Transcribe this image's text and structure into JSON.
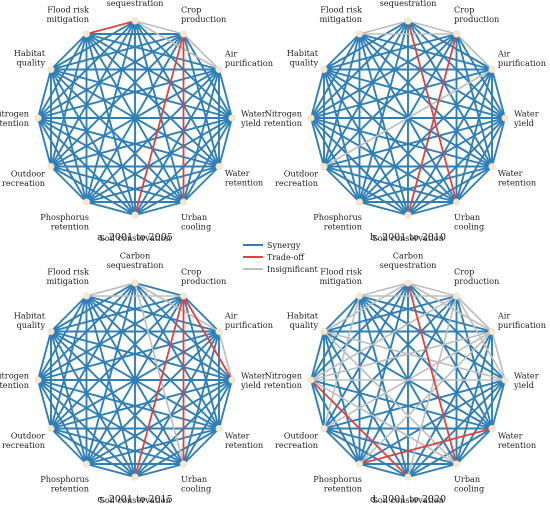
{
  "colors": {
    "synergy": "#2f7fb5",
    "tradeoff": "#e0413f",
    "insignificant": "#bdbdbd",
    "node": "#f3e9d2"
  },
  "legend": {
    "synergy": "Synergy",
    "tradeoff": "Trade-off",
    "insignificant": "Insignificant"
  },
  "nodes": [
    {
      "label": [
        "Carbon",
        "sequestration"
      ]
    },
    {
      "label": [
        "Crop",
        "production"
      ]
    },
    {
      "label": [
        "Air",
        "purification"
      ]
    },
    {
      "label": [
        "Water",
        "yield"
      ]
    },
    {
      "label": [
        "Water",
        "retention"
      ]
    },
    {
      "label": [
        "Urban",
        "cooling"
      ]
    },
    {
      "label": [
        "Soil conservation"
      ]
    },
    {
      "label": [
        "Phosphorus",
        "retention"
      ]
    },
    {
      "label": [
        "Outdoor",
        "recreation"
      ]
    },
    {
      "label": [
        "Nitrogen",
        "retention"
      ]
    },
    {
      "label": [
        "Habitat",
        "quality"
      ]
    },
    {
      "label": [
        "Flood risk",
        "mitigation"
      ]
    }
  ],
  "panels": [
    {
      "caption": "a. 2001 to 2005",
      "tradeoff": [
        [
          0,
          11
        ],
        [
          1,
          5
        ],
        [
          1,
          6
        ]
      ],
      "insignificant": [
        [
          0,
          1
        ],
        [
          1,
          2
        ],
        [
          0,
          2
        ]
      ]
    },
    {
      "caption": "b. 2001 to 2010",
      "tradeoff": [
        [
          0,
          5
        ],
        [
          1,
          6
        ]
      ],
      "insignificant": [
        [
          0,
          11
        ],
        [
          0,
          1
        ],
        [
          1,
          2
        ],
        [
          11,
          1
        ],
        [
          2,
          8
        ]
      ]
    },
    {
      "caption": "c. 2001 to 2015",
      "tradeoff": [
        [
          1,
          5
        ],
        [
          1,
          3
        ],
        [
          1,
          6
        ]
      ],
      "insignificant": [
        [
          0,
          11
        ],
        [
          0,
          5
        ],
        [
          11,
          1
        ],
        [
          2,
          3
        ],
        [
          0,
          2
        ]
      ]
    },
    {
      "caption": "d. 2001 to 2020",
      "tradeoff": [
        [
          9,
          6
        ],
        [
          4,
          7
        ],
        [
          0,
          5
        ]
      ],
      "insignificant": [
        [
          11,
          0
        ],
        [
          0,
          1
        ],
        [
          1,
          2
        ],
        [
          2,
          3
        ],
        [
          11,
          1
        ],
        [
          0,
          2
        ],
        [
          10,
          0
        ],
        [
          1,
          3
        ],
        [
          10,
          3
        ],
        [
          9,
          1
        ],
        [
          10,
          5
        ],
        [
          9,
          2
        ],
        [
          8,
          2
        ],
        [
          8,
          11
        ],
        [
          7,
          2
        ],
        [
          6,
          1
        ],
        [
          5,
          9
        ],
        [
          9,
          3
        ]
      ]
    }
  ]
}
